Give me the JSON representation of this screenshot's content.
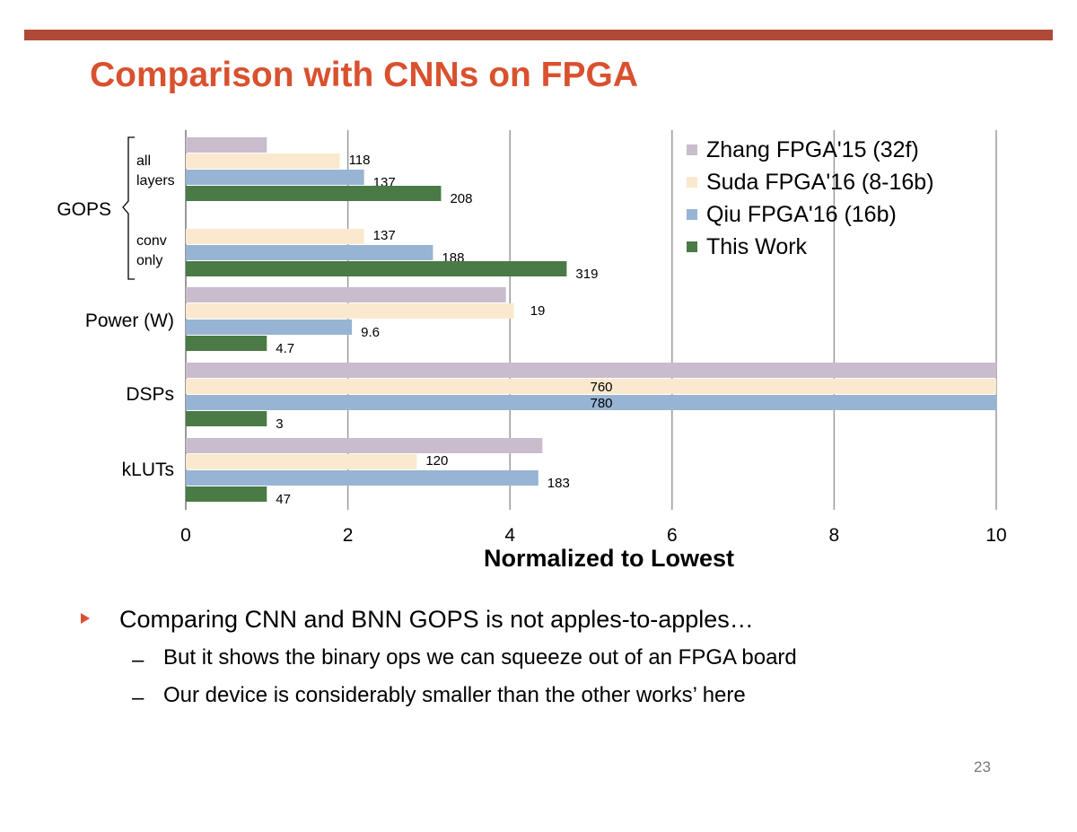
{
  "slide": {
    "title": "Comparison with CNNs on FPGA",
    "bullet": "Comparing CNN and BNN GOPS is not apples-to-apples…",
    "sub_bullets": [
      "But it shows the binary ops we can squeeze out of an FPGA board",
      "Our device is considerably smaller than the other works’ here"
    ],
    "sub_marker": "–",
    "page_number": "23"
  },
  "chart_data": {
    "type": "bar",
    "orientation": "horizontal",
    "xlabel": "Normalized to Lowest",
    "xlim": [
      0,
      10
    ],
    "xticks": [
      "0",
      "2",
      "4",
      "6",
      "8",
      "10"
    ],
    "grid": true,
    "legend_position": "top-right",
    "series": [
      {
        "name": "Zhang FPGA'15 (32f)",
        "color": "#c9bccc"
      },
      {
        "name": "Suda FPGA'16 (8-16b)",
        "color": "#fbe9cf"
      },
      {
        "name": "Qiu FPGA'16 (16b)",
        "color": "#98b4d4"
      },
      {
        "name": "This Work",
        "color": "#4a7a45"
      }
    ],
    "groups": [
      {
        "label": "GOPS",
        "subgroups": [
          {
            "label": [
              "all",
              "layers"
            ],
            "bars": [
              {
                "series": 0,
                "value": 1.0,
                "label": ""
              },
              {
                "series": 1,
                "value": 1.9,
                "label": "118"
              },
              {
                "series": 2,
                "value": 2.2,
                "label": "137"
              },
              {
                "series": 3,
                "value": 3.15,
                "label": "208"
              }
            ]
          },
          {
            "label": [
              "conv",
              "only"
            ],
            "bars": [
              {
                "series": 1,
                "value": 2.2,
                "label": "137"
              },
              {
                "series": 2,
                "value": 3.05,
                "label": "188"
              },
              {
                "series": 3,
                "value": 4.7,
                "label": "319"
              }
            ]
          }
        ]
      },
      {
        "label": "Power (W)",
        "bars": [
          {
            "series": 0,
            "value": 3.95,
            "label": ""
          },
          {
            "series": 1,
            "value": 4.05,
            "label": "19"
          },
          {
            "series": 2,
            "value": 2.05,
            "label": "9.6"
          },
          {
            "series": 3,
            "value": 1.0,
            "label": "4.7"
          }
        ]
      },
      {
        "label": "DSPs",
        "bars": [
          {
            "series": 0,
            "value": 10,
            "label": ""
          },
          {
            "series": 1,
            "value": 10,
            "label": "760"
          },
          {
            "series": 2,
            "value": 10,
            "label": "780"
          },
          {
            "series": 3,
            "value": 1.0,
            "label": "3"
          }
        ]
      },
      {
        "label": "kLUTs",
        "bars": [
          {
            "series": 0,
            "value": 4.4,
            "label": ""
          },
          {
            "series": 1,
            "value": 2.85,
            "label": "120"
          },
          {
            "series": 2,
            "value": 4.35,
            "label": "183"
          },
          {
            "series": 3,
            "value": 1.0,
            "label": "47"
          }
        ]
      }
    ]
  }
}
